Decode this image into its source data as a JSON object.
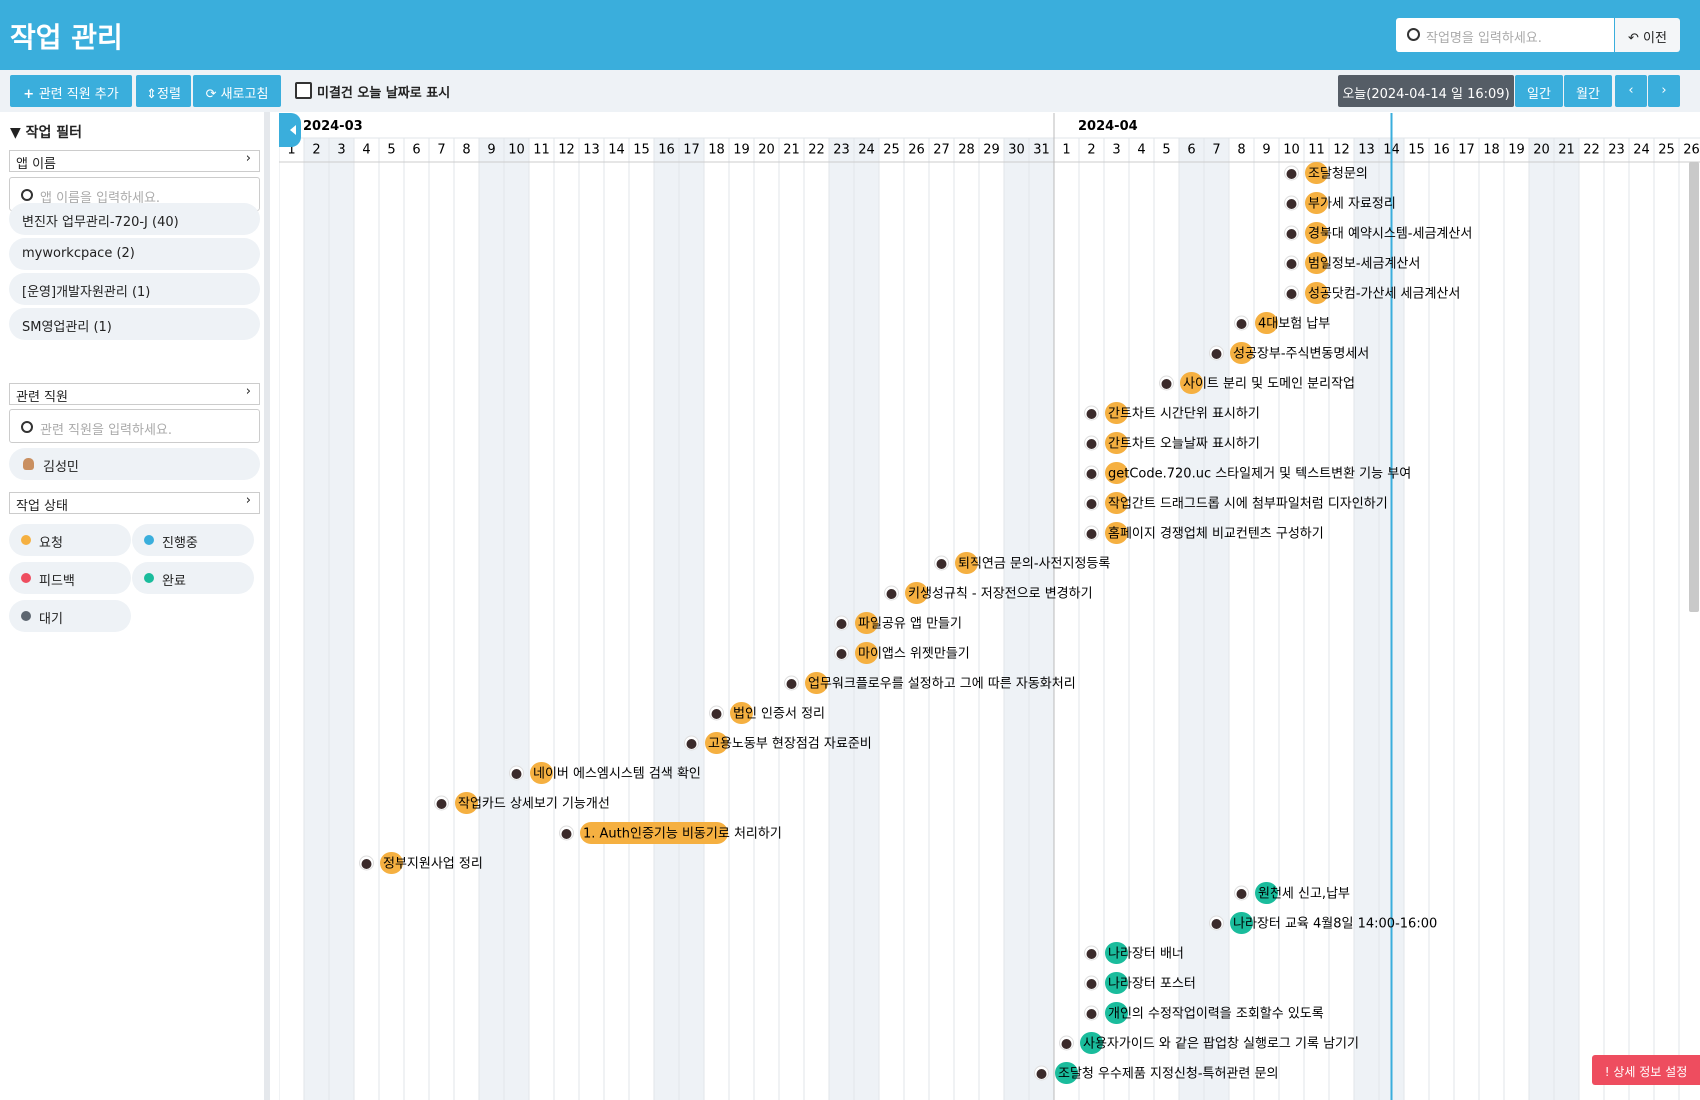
{
  "header": {
    "title": "작업 관리",
    "search_placeholder": "작업명을 입력하세요.",
    "back": "이전"
  },
  "toolbar": {
    "add": "관련 직원 추가",
    "sort": "정렬",
    "refresh": "새로고침",
    "checkbox": "미결건 오늘 날짜로 표시",
    "today": "오늘(2024-04-14 일 16:09)",
    "daily": "일간",
    "monthly": "월간"
  },
  "sidebar": {
    "title": "작업 필터",
    "app": {
      "label": "앱 이름",
      "placeholder": "앱 이름을 입력하세요.",
      "items": [
        "변진자 업무관리-720-J (40)",
        "myworkcpace (2)",
        "[운영]개발자원관리 (1)",
        "SM영업관리 (1)"
      ]
    },
    "staff": {
      "label": "관련 직원",
      "placeholder": "관련 직원을 입력하세요.",
      "items": [
        "김성민"
      ]
    },
    "status": {
      "label": "작업 상태",
      "items": [
        {
          "name": "요청",
          "color": "#f5b041"
        },
        {
          "name": "진행중",
          "color": "#3aaedc"
        },
        {
          "name": "피드백",
          "color": "#ee4d5f"
        },
        {
          "name": "완료",
          "color": "#1abc9c"
        },
        {
          "name": "대기",
          "color": "#5d6670"
        }
      ]
    }
  },
  "timeline": {
    "months": [
      {
        "label": "2024-03",
        "days": [
          1,
          2,
          3,
          4,
          5,
          6,
          7,
          8,
          9,
          10,
          11,
          12,
          13,
          14,
          15,
          16,
          17,
          18,
          19,
          20,
          21,
          22,
          23,
          24,
          25,
          26,
          27,
          28,
          29,
          30,
          31
        ]
      },
      {
        "label": "2024-04",
        "days": [
          1,
          2,
          3,
          4,
          5,
          6,
          7,
          8,
          9,
          10,
          11,
          12,
          13,
          14,
          15,
          16,
          17,
          18,
          19,
          20,
          21,
          22,
          23,
          24,
          25,
          26
        ]
      }
    ],
    "tasks": [
      {
        "label": "조달청문의",
        "start": "2024-04-11",
        "end": "2024-04-11",
        "status": "요청"
      },
      {
        "label": "부가세 자료정리",
        "start": "2024-04-11",
        "end": "2024-04-11",
        "status": "요청"
      },
      {
        "label": "경북대 예약시스템-세금계산서",
        "start": "2024-04-11",
        "end": "2024-04-11",
        "status": "요청"
      },
      {
        "label": "범일정보-세금계산서",
        "start": "2024-04-11",
        "end": "2024-04-11",
        "status": "요청"
      },
      {
        "label": "성공닷컴-가산세 세금계산서",
        "start": "2024-04-11",
        "end": "2024-04-11",
        "status": "요청"
      },
      {
        "label": "4대보험 납부",
        "start": "2024-04-09",
        "end": "2024-04-09",
        "status": "요청"
      },
      {
        "label": "성공장부-주식변동명세서",
        "start": "2024-04-08",
        "end": "2024-04-08",
        "status": "요청"
      },
      {
        "label": "사이트 분리 및 도메인 분리작업",
        "start": "2024-04-06",
        "end": "2024-04-06",
        "status": "요청"
      },
      {
        "label": "간트차트 시간단위 표시하기",
        "start": "2024-04-03",
        "end": "2024-04-03",
        "status": "요청"
      },
      {
        "label": "간트차트 오늘날짜 표시하기",
        "start": "2024-04-03",
        "end": "2024-04-03",
        "status": "요청"
      },
      {
        "label": "getCode.720.uc 스타일제거 및 텍스트변환 기능 부여",
        "start": "2024-04-03",
        "end": "2024-04-03",
        "status": "요청"
      },
      {
        "label": "작업간트 드래그드롭 시에 첨부파일처럼 디자인하기",
        "start": "2024-04-03",
        "end": "2024-04-03",
        "status": "요청"
      },
      {
        "label": "홈페이지 경쟁업체 비교컨텐츠 구성하기",
        "start": "2024-04-03",
        "end": "2024-04-03",
        "status": "요청"
      },
      {
        "label": "퇴직연금 문의-사전지정등록",
        "start": "2024-03-28",
        "end": "2024-03-28",
        "status": "요청"
      },
      {
        "label": "키생성규칙 - 저장전으로 변경하기",
        "start": "2024-03-26",
        "end": "2024-03-26",
        "status": "요청"
      },
      {
        "label": "파일공유 앱 만들기",
        "start": "2024-03-24",
        "end": "2024-03-24",
        "status": "요청"
      },
      {
        "label": "마이앱스 위젯만들기",
        "start": "2024-03-24",
        "end": "2024-03-24",
        "status": "요청"
      },
      {
        "label": "업무워크플로우를 설정하고 그에 따른 자동화처리",
        "start": "2024-03-22",
        "end": "2024-03-22",
        "status": "요청"
      },
      {
        "label": "법인 인증서 정리",
        "start": "2024-03-19",
        "end": "2024-03-19",
        "status": "요청"
      },
      {
        "label": "고용노동부 현장점검 자료준비",
        "start": "2024-03-18",
        "end": "2024-03-18",
        "status": "요청"
      },
      {
        "label": "네이버 에스엠시스템 검색 확인",
        "start": "2024-03-11",
        "end": "2024-03-11",
        "status": "요청"
      },
      {
        "label": "작업카드 상세보기 기능개선",
        "start": "2024-03-08",
        "end": "2024-03-08",
        "status": "요청"
      },
      {
        "label": "1. Auth인증기능 비동기로 처리하기",
        "start": "2024-03-13",
        "end": "2024-03-18",
        "status": "요청"
      },
      {
        "label": "정부지원사업 정리",
        "start": "2024-03-05",
        "end": "2024-03-05",
        "status": "요청"
      },
      {
        "label": "원천세 신고,납부",
        "start": "2024-04-09",
        "end": "2024-04-09",
        "status": "완료"
      },
      {
        "label": "나라장터 교육 4월8일 14:00-16:00",
        "start": "2024-04-08",
        "end": "2024-04-08",
        "status": "완료"
      },
      {
        "label": "나라장터 배너",
        "start": "2024-04-03",
        "end": "2024-04-03",
        "status": "완료"
      },
      {
        "label": "나라장터 포스터",
        "start": "2024-04-03",
        "end": "2024-04-03",
        "status": "완료"
      },
      {
        "label": "개인의 수정작업이력을 조회할수 있도록",
        "start": "2024-04-03",
        "end": "2024-04-03",
        "status": "완료"
      },
      {
        "label": "사용자가이드 와 같은 팝업창 실행로그 기록 남기기",
        "start": "2024-04-02",
        "end": "2024-04-02",
        "status": "완료"
      },
      {
        "label": "조달청 우수제품 지정신청-특허관련 문의",
        "start": "2024-04-01",
        "end": "2024-04-01",
        "status": "완료"
      }
    ]
  },
  "detail_button": "상세 정보 설정"
}
